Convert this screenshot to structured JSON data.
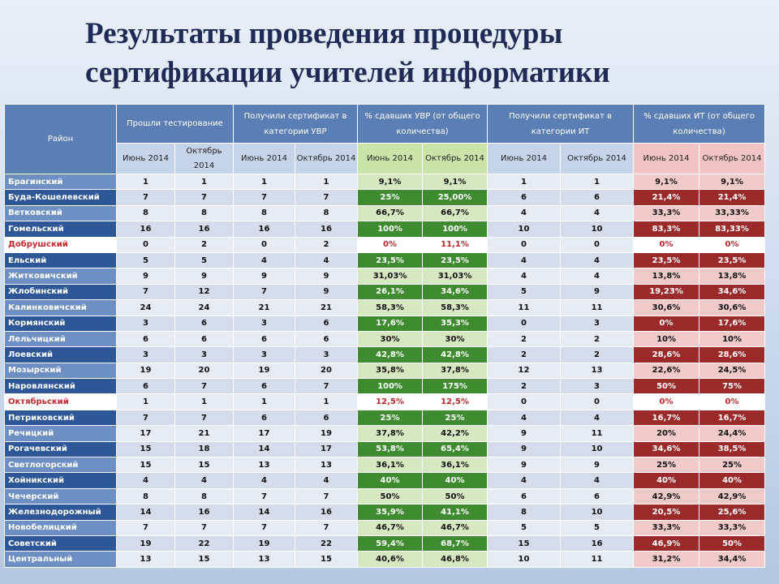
{
  "header": {
    "title_line1": "Результаты проведения процедуры",
    "title_line2": "сертификации учителей информатики"
  },
  "table": {
    "district_header": "Район",
    "groups": [
      "Прошли тестирование",
      "Получили сертификат в категории УВР",
      "% сдавших УВР (от общего количества)",
      "Получили сертификат в категории ИТ",
      "% сдавших ИТ (от общего количества)"
    ],
    "subheaders": [
      "Июнь 2014",
      "Октябрь 2014",
      "Июнь 2014",
      "Октябрь 2014",
      "Июнь 2014",
      "Октябрь 2014",
      "Июнь 2014",
      "Октябрь 2014",
      "Июнь 2014",
      "Октябрь 2014"
    ],
    "rows": [
      [
        "Брагинский",
        "1",
        "1",
        "1",
        "1",
        "9,1%",
        "9,1%",
        "1",
        "1",
        "9,1%",
        "9,1%"
      ],
      [
        "Буда-Кошелевский",
        "7",
        "7",
        "7",
        "7",
        "25%",
        "25,00%",
        "6",
        "6",
        "21,4%",
        "21,4%"
      ],
      [
        "Ветковский",
        "8",
        "8",
        "8",
        "8",
        "66,7%",
        "66,7%",
        "4",
        "4",
        "33,3%",
        "33,33%"
      ],
      [
        "Гомельский",
        "16",
        "16",
        "16",
        "16",
        "100%",
        "100%",
        "10",
        "10",
        "83,3%",
        "83,33%"
      ],
      [
        "Добрушский",
        "0",
        "2",
        "0",
        "2",
        "0%",
        "11,1%",
        "0",
        "0",
        "0%",
        "0%"
      ],
      [
        "Ельский",
        "5",
        "5",
        "4",
        "4",
        "23,5%",
        "23,5%",
        "4",
        "4",
        "23,5%",
        "23,5%"
      ],
      [
        "Житковичский",
        "9",
        "9",
        "9",
        "9",
        "31,03%",
        "31,03%",
        "4",
        "4",
        "13,8%",
        "13,8%"
      ],
      [
        "Жлобинский",
        "7",
        "12",
        "7",
        "9",
        "26,1%",
        "34,6%",
        "5",
        "9",
        "19,23%",
        "34,6%"
      ],
      [
        "Калинковичский",
        "24",
        "24",
        "21",
        "21",
        "58,3%",
        "58,3%",
        "11",
        "11",
        "30,6%",
        "30,6%"
      ],
      [
        "Кормянский",
        "3",
        "6",
        "3",
        "6",
        "17,6%",
        "35,3%",
        "0",
        "3",
        "0%",
        "17,6%"
      ],
      [
        "Лельчицкий",
        "6",
        "6",
        "6",
        "6",
        "30%",
        "30%",
        "2",
        "2",
        "10%",
        "10%"
      ],
      [
        "Лоевский",
        "3",
        "3",
        "3",
        "3",
        "42,8%",
        "42,8%",
        "2",
        "2",
        "28,6%",
        "28,6%"
      ],
      [
        "Мозырский",
        "19",
        "20",
        "19",
        "20",
        "35,8%",
        "37,8%",
        "12",
        "13",
        "22,6%",
        "24,5%"
      ],
      [
        "Наровлянский",
        "6",
        "7",
        "6",
        "7",
        "100%",
        "175%",
        "2",
        "3",
        "50%",
        "75%"
      ],
      [
        "Октябрьский",
        "1",
        "1",
        "1",
        "1",
        "12,5%",
        "12,5%",
        "0",
        "0",
        "0%",
        "0%"
      ],
      [
        "Петриковский",
        "7",
        "7",
        "6",
        "6",
        "25%",
        "25%",
        "4",
        "4",
        "16,7%",
        "16,7%"
      ],
      [
        "Речицкий",
        "17",
        "21",
        "17",
        "19",
        "37,8%",
        "42,2%",
        "9",
        "11",
        "20%",
        "24,4%"
      ],
      [
        "Рогачевский",
        "15",
        "18",
        "14",
        "17",
        "53,8%",
        "65,4%",
        "9",
        "10",
        "34,6%",
        "38,5%"
      ],
      [
        "Светлогорский",
        "15",
        "15",
        "13",
        "13",
        "36,1%",
        "36,1%",
        "9",
        "9",
        "25%",
        "25%"
      ],
      [
        "Хойникский",
        "4",
        "4",
        "4",
        "4",
        "40%",
        "40%",
        "4",
        "4",
        "40%",
        "40%"
      ],
      [
        "Чечерский",
        "8",
        "8",
        "7",
        "7",
        "50%",
        "50%",
        "6",
        "6",
        "42,9%",
        "42,9%"
      ],
      [
        "Железнодорожный",
        "14",
        "16",
        "14",
        "16",
        "35,9%",
        "41,1%",
        "8",
        "10",
        "20,5%",
        "25,6%"
      ],
      [
        "Новобелицкий",
        "7",
        "7",
        "7",
        "7",
        "46,7%",
        "46,7%",
        "5",
        "5",
        "33,3%",
        "33,3%"
      ],
      [
        "Советский",
        "19",
        "22",
        "19",
        "22",
        "59,4%",
        "68,7%",
        "15",
        "16",
        "46,9%",
        "50%"
      ],
      [
        "Центральный",
        "13",
        "15",
        "13",
        "15",
        "40,6%",
        "46,8%",
        "10",
        "11",
        "31,2%",
        "34,4%"
      ]
    ]
  }
}
